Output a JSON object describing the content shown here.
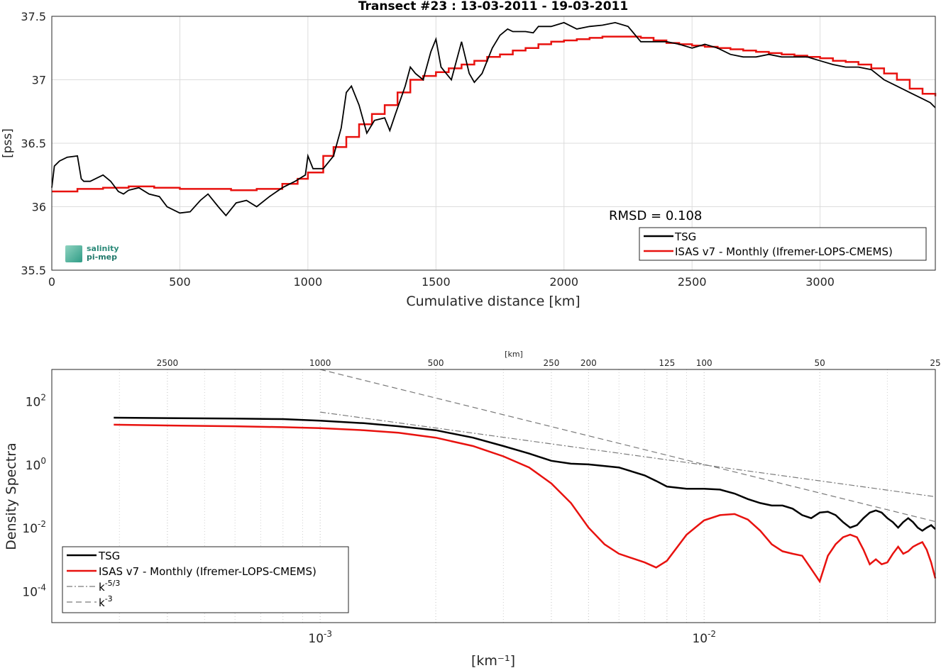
{
  "colors": {
    "tsg": "#000000",
    "isas": "#e8120f",
    "ref": "#7a7a7a",
    "grid": "#dcdcdc"
  },
  "logo": {
    "line1": "salinity",
    "line2": "pi-mep",
    "icon": "salinity-pi-mep-logo-icon"
  },
  "top": {
    "title": "Transect #23 : 13-03-2011 - 19-03-2011",
    "ylabel": "[pss]",
    "xlabel": "Cumulative distance [km]",
    "annotation": "RMSD = 0.108",
    "xticks": [
      "0",
      "500",
      "1000",
      "1500",
      "2000",
      "2500",
      "3000"
    ],
    "yticks": [
      "35.5",
      "36",
      "36.5",
      "37",
      "37.5"
    ],
    "legend": [
      "TSG",
      "ISAS v7 - Monthly (Ifremer-LOPS-CMEMS)"
    ]
  },
  "bottom": {
    "ylabel": "Density Spectra",
    "xlabel": "[km⁻¹]",
    "top_axis_label": "[km]",
    "top_ticks": [
      "2500",
      "1000",
      "500",
      "250",
      "200",
      "125",
      "100",
      "50",
      "25"
    ],
    "x_exp_ticks": [
      {
        "base": "10",
        "exp": "-3"
      },
      {
        "base": "10",
        "exp": "-2"
      }
    ],
    "y_exp_ticks": [
      {
        "base": "10",
        "exp": "2"
      },
      {
        "base": "10",
        "exp": "0"
      },
      {
        "base": "10",
        "exp": "-2"
      },
      {
        "base": "10",
        "exp": "-4"
      }
    ],
    "legend": [
      {
        "label": "TSG",
        "sup": ""
      },
      {
        "label": "ISAS v7 - Monthly (Ifremer-LOPS-CMEMS)",
        "sup": ""
      },
      {
        "label": "k",
        "sup": "-5/3"
      },
      {
        "label": "k",
        "sup": "-3"
      }
    ]
  },
  "chart_data": [
    {
      "type": "line",
      "title": "Transect #23 : 13-03-2011 - 19-03-2011",
      "xlabel": "Cumulative distance [km]",
      "ylabel": "[pss]",
      "xlim": [
        0,
        3450
      ],
      "ylim": [
        35.5,
        37.5
      ],
      "grid": true,
      "legend_position": "bottom-right",
      "annotation": "RMSD = 0.108",
      "series": [
        {
          "name": "TSG",
          "x": [
            0,
            10,
            30,
            60,
            100,
            115,
            125,
            150,
            200,
            230,
            260,
            280,
            300,
            340,
            380,
            420,
            450,
            500,
            540,
            580,
            610,
            650,
            680,
            720,
            760,
            800,
            850,
            900,
            950,
            990,
            1000,
            1020,
            1060,
            1100,
            1130,
            1150,
            1170,
            1200,
            1230,
            1260,
            1300,
            1320,
            1340,
            1380,
            1400,
            1420,
            1450,
            1480,
            1500,
            1520,
            1560,
            1600,
            1630,
            1650,
            1680,
            1720,
            1750,
            1780,
            1800,
            1850,
            1880,
            1900,
            1950,
            2000,
            2050,
            2100,
            2150,
            2200,
            2250,
            2300,
            2350,
            2400,
            2450,
            2500,
            2550,
            2600,
            2650,
            2700,
            2750,
            2800,
            2850,
            2900,
            2950,
            3000,
            3050,
            3100,
            3150,
            3200,
            3250,
            3300,
            3350,
            3400,
            3430,
            3450
          ],
          "y": [
            36.15,
            36.32,
            36.36,
            36.39,
            36.4,
            36.22,
            36.2,
            36.2,
            36.25,
            36.2,
            36.12,
            36.1,
            36.13,
            36.15,
            36.1,
            36.08,
            36.0,
            35.95,
            35.96,
            36.05,
            36.1,
            36.0,
            35.93,
            36.03,
            36.05,
            36.0,
            36.08,
            36.15,
            36.2,
            36.25,
            36.4,
            36.3,
            36.3,
            36.4,
            36.62,
            36.9,
            36.95,
            36.8,
            36.58,
            36.68,
            36.7,
            36.6,
            36.72,
            36.95,
            37.1,
            37.05,
            37.0,
            37.22,
            37.32,
            37.1,
            37.0,
            37.3,
            37.05,
            36.98,
            37.05,
            37.25,
            37.35,
            37.4,
            37.38,
            37.38,
            37.37,
            37.42,
            37.42,
            37.45,
            37.4,
            37.42,
            37.43,
            37.45,
            37.42,
            37.3,
            37.3,
            37.3,
            37.28,
            37.25,
            37.28,
            37.25,
            37.2,
            37.18,
            37.18,
            37.2,
            37.18,
            37.18,
            37.18,
            37.15,
            37.12,
            37.1,
            37.1,
            37.08,
            37.0,
            36.95,
            36.9,
            36.85,
            36.82,
            36.78
          ]
        },
        {
          "name": "ISAS v7 - Monthly (Ifremer-LOPS-CMEMS)",
          "x": [
            0,
            100,
            200,
            300,
            400,
            500,
            600,
            700,
            800,
            900,
            960,
            1000,
            1060,
            1100,
            1150,
            1200,
            1250,
            1300,
            1350,
            1400,
            1450,
            1500,
            1550,
            1600,
            1650,
            1700,
            1750,
            1800,
            1850,
            1900,
            1950,
            2000,
            2050,
            2100,
            2150,
            2200,
            2250,
            2300,
            2350,
            2400,
            2450,
            2500,
            2550,
            2600,
            2650,
            2700,
            2750,
            2800,
            2850,
            2900,
            2950,
            3000,
            3050,
            3100,
            3150,
            3200,
            3250,
            3300,
            3350,
            3400,
            3450
          ],
          "y": [
            36.12,
            36.14,
            36.15,
            36.16,
            36.15,
            36.14,
            36.14,
            36.13,
            36.14,
            36.18,
            36.22,
            36.27,
            36.4,
            36.47,
            36.55,
            36.65,
            36.73,
            36.8,
            36.9,
            37.0,
            37.03,
            37.06,
            37.09,
            37.12,
            37.15,
            37.18,
            37.2,
            37.23,
            37.25,
            37.28,
            37.3,
            37.31,
            37.32,
            37.33,
            37.34,
            37.34,
            37.34,
            37.33,
            37.31,
            37.29,
            37.28,
            37.27,
            37.26,
            37.25,
            37.24,
            37.23,
            37.22,
            37.21,
            37.2,
            37.19,
            37.18,
            37.17,
            37.15,
            37.14,
            37.12,
            37.09,
            37.05,
            37.0,
            36.93,
            36.89,
            36.87
          ]
        }
      ]
    },
    {
      "type": "line",
      "xlabel": "[km-1]",
      "ylabel": "Density Spectra",
      "x_scale": "log",
      "y_scale": "log",
      "xlim": [
        0.0002,
        0.04
      ],
      "ylim": [
        1e-05,
        1000
      ],
      "grid": true,
      "legend_position": "bottom-left",
      "top_axis": {
        "label": "[km]",
        "ticks_km": [
          2500,
          1000,
          500,
          250,
          200,
          125,
          100,
          50,
          25
        ]
      },
      "series": [
        {
          "name": "TSG",
          "x": [
            0.00029,
            0.0004,
            0.0006,
            0.0008,
            0.001,
            0.0013,
            0.0016,
            0.002,
            0.0025,
            0.003,
            0.0035,
            0.004,
            0.0045,
            0.005,
            0.006,
            0.007,
            0.0075,
            0.008,
            0.009,
            0.01,
            0.011,
            0.012,
            0.013,
            0.014,
            0.015,
            0.016,
            0.017,
            0.018,
            0.019,
            0.02,
            0.021,
            0.022,
            0.023,
            0.024,
            0.025,
            0.026,
            0.027,
            0.028,
            0.029,
            0.03,
            0.031,
            0.032,
            0.033,
            0.034,
            0.035,
            0.036,
            0.037,
            0.038,
            0.039,
            0.04
          ],
          "y": [
            30,
            29,
            28,
            27,
            24,
            20,
            16,
            12,
            7,
            3.8,
            2.2,
            1.3,
            1.05,
            1.0,
            0.8,
            0.45,
            0.3,
            0.2,
            0.17,
            0.17,
            0.16,
            0.12,
            0.08,
            0.06,
            0.05,
            0.05,
            0.04,
            0.025,
            0.02,
            0.03,
            0.032,
            0.025,
            0.015,
            0.01,
            0.012,
            0.02,
            0.03,
            0.035,
            0.03,
            0.02,
            0.015,
            0.01,
            0.015,
            0.02,
            0.015,
            0.01,
            0.008,
            0.01,
            0.012,
            0.009
          ]
        },
        {
          "name": "ISAS v7 - Monthly (Ifremer-LOPS-CMEMS)",
          "x": [
            0.00029,
            0.0004,
            0.0006,
            0.0008,
            0.001,
            0.0013,
            0.0016,
            0.002,
            0.0025,
            0.003,
            0.0035,
            0.004,
            0.0045,
            0.005,
            0.0055,
            0.006,
            0.007,
            0.0075,
            0.008,
            0.009,
            0.01,
            0.011,
            0.012,
            0.013,
            0.014,
            0.015,
            0.016,
            0.017,
            0.018,
            0.019,
            0.02,
            0.021,
            0.022,
            0.023,
            0.024,
            0.025,
            0.026,
            0.027,
            0.028,
            0.029,
            0.03,
            0.031,
            0.032,
            0.033,
            0.034,
            0.035,
            0.036,
            0.037,
            0.038,
            0.039,
            0.04
          ],
          "y": [
            18,
            17,
            16,
            15,
            14,
            12,
            10,
            7,
            3.8,
            1.8,
            0.8,
            0.25,
            0.06,
            0.01,
            0.003,
            0.0015,
            0.0008,
            0.00055,
            0.0009,
            0.006,
            0.017,
            0.025,
            0.027,
            0.018,
            0.008,
            0.003,
            0.0018,
            0.0015,
            0.0013,
            0.0005,
            0.0002,
            0.0013,
            0.003,
            0.005,
            0.006,
            0.005,
            0.002,
            0.0007,
            0.001,
            0.0007,
            0.0008,
            0.0015,
            0.0025,
            0.0015,
            0.0018,
            0.0025,
            0.003,
            0.0035,
            0.002,
            0.0008,
            0.00025
          ]
        },
        {
          "name": "k-5/3",
          "x": [
            0.001,
            0.04
          ],
          "y": [
            45,
            0.095
          ]
        },
        {
          "name": "k-3",
          "x": [
            0.001,
            0.04
          ],
          "y": [
            1000,
            0.0156
          ]
        }
      ]
    }
  ]
}
